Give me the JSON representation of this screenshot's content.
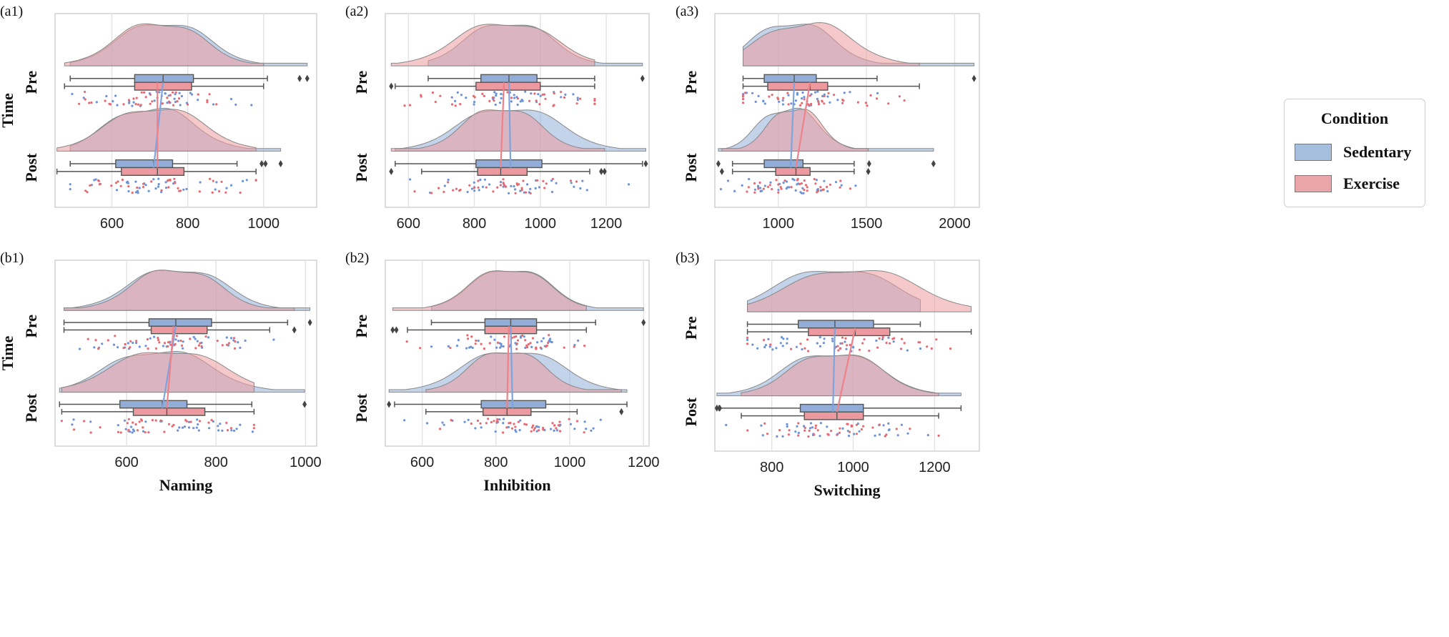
{
  "colors": {
    "sedentary": "#92aed8",
    "exercise": "#ec9a9f",
    "sedentary_line": "#7fa4dd",
    "exercise_line": "#ee8288"
  },
  "legend": {
    "title": "Condition",
    "items": [
      {
        "key": "sedentary",
        "label": "Sedentary"
      },
      {
        "key": "exercise",
        "label": "Exercise"
      }
    ]
  },
  "chart_data": [
    {
      "id": "a1",
      "panel_label": "(a1)",
      "type": "raincloud",
      "title": "",
      "ylabel": "Time",
      "xlabel": "",
      "xlim": [
        450,
        1140
      ],
      "xticks": [
        600,
        800,
        1000
      ],
      "categories": [
        "Pre",
        "Post"
      ],
      "series": [
        {
          "name": "Sedentary",
          "pre": {
            "min": 490,
            "q1": 660,
            "median": 735,
            "q3": 815,
            "max": 1010,
            "outliers": [
              1095,
              1115
            ]
          },
          "post": {
            "min": 490,
            "q1": 610,
            "median": 710,
            "q3": 760,
            "max": 930,
            "outliers": [
              995,
              1005,
              1045
            ]
          }
        },
        {
          "name": "Exercise",
          "pre": {
            "min": 475,
            "q1": 660,
            "median": 720,
            "q3": 810,
            "max": 1000,
            "outliers": []
          },
          "post": {
            "min": 455,
            "q1": 625,
            "median": 720,
            "q3": 790,
            "max": 980,
            "outliers": []
          }
        }
      ]
    },
    {
      "id": "a2",
      "panel_label": "(a2)",
      "type": "raincloud",
      "title": "",
      "ylabel": "",
      "xlabel": "",
      "xlim": [
        530,
        1330
      ],
      "xticks": [
        600,
        800,
        1000,
        1200
      ],
      "categories": [
        "Pre",
        "Post"
      ],
      "series": [
        {
          "name": "Sedentary",
          "pre": {
            "min": 660,
            "q1": 820,
            "median": 905,
            "q3": 990,
            "max": 1165,
            "outliers": [
              1310
            ]
          },
          "post": {
            "min": 560,
            "q1": 805,
            "median": 910,
            "q3": 1005,
            "max": 1310,
            "outliers": [
              1320
            ]
          }
        },
        {
          "name": "Exercise",
          "pre": {
            "min": 560,
            "q1": 805,
            "median": 890,
            "q3": 1000,
            "max": 1165,
            "outliers": [
              548
            ]
          },
          "post": {
            "min": 640,
            "q1": 810,
            "median": 880,
            "q3": 960,
            "max": 1150,
            "outliers": [
              548,
              1185,
              1195
            ]
          }
        }
      ]
    },
    {
      "id": "a3",
      "panel_label": "(a3)",
      "type": "raincloud",
      "title": "",
      "ylabel": "",
      "xlabel": "",
      "xlim": [
        640,
        2140
      ],
      "xticks": [
        1000,
        1500,
        2000
      ],
      "categories": [
        "Pre",
        "Post"
      ],
      "series": [
        {
          "name": "Sedentary",
          "pre": {
            "min": 800,
            "q1": 920,
            "median": 1090,
            "q3": 1215,
            "max": 1560,
            "outliers": [
              2110
            ]
          },
          "post": {
            "min": 740,
            "q1": 920,
            "median": 1070,
            "q3": 1140,
            "max": 1430,
            "outliers": [
              660,
              1515,
              1880
            ]
          }
        },
        {
          "name": "Exercise",
          "pre": {
            "min": 800,
            "q1": 940,
            "median": 1180,
            "q3": 1280,
            "max": 1800,
            "outliers": []
          },
          "post": {
            "min": 740,
            "q1": 985,
            "median": 1100,
            "q3": 1180,
            "max": 1430,
            "outliers": [
              680,
              1510
            ]
          }
        }
      ]
    },
    {
      "id": "b1",
      "panel_label": "(b1)",
      "type": "raincloud",
      "title": "",
      "ylabel": "Time",
      "xlabel": "Naming",
      "xlim": [
        440,
        1025
      ],
      "xticks": [
        600,
        800,
        1000
      ],
      "categories": [
        "Pre",
        "Post"
      ],
      "series": [
        {
          "name": "Sedentary",
          "pre": {
            "min": 460,
            "q1": 650,
            "median": 710,
            "q3": 790,
            "max": 960,
            "outliers": [
              1010
            ]
          },
          "post": {
            "min": 450,
            "q1": 585,
            "median": 680,
            "q3": 735,
            "max": 880,
            "outliers": [
              998
            ]
          }
        },
        {
          "name": "Exercise",
          "pre": {
            "min": 460,
            "q1": 655,
            "median": 705,
            "q3": 780,
            "max": 920,
            "outliers": [
              975
            ]
          },
          "post": {
            "min": 455,
            "q1": 615,
            "median": 690,
            "q3": 775,
            "max": 885,
            "outliers": []
          }
        }
      ]
    },
    {
      "id": "b2",
      "panel_label": "(b2)",
      "type": "raincloud",
      "title": "",
      "ylabel": "",
      "xlabel": "Inhibition",
      "xlim": [
        500,
        1215
      ],
      "xticks": [
        600,
        800,
        1000,
        1200
      ],
      "categories": [
        "Pre",
        "Post"
      ],
      "series": [
        {
          "name": "Sedentary",
          "pre": {
            "min": 625,
            "q1": 770,
            "median": 840,
            "q3": 910,
            "max": 1070,
            "outliers": [
              1200
            ]
          },
          "post": {
            "min": 525,
            "q1": 760,
            "median": 845,
            "q3": 935,
            "max": 1155,
            "outliers": [
              510
            ]
          }
        },
        {
          "name": "Exercise",
          "pre": {
            "min": 560,
            "q1": 770,
            "median": 835,
            "q3": 910,
            "max": 1045,
            "outliers": [
              520,
              530
            ]
          },
          "post": {
            "min": 610,
            "q1": 765,
            "median": 830,
            "q3": 895,
            "max": 1020,
            "outliers": [
              1140
            ]
          }
        }
      ]
    },
    {
      "id": "b3",
      "panel_label": "(b3)",
      "type": "raincloud",
      "title": "",
      "ylabel": "",
      "xlabel": "Switching",
      "xlim": [
        660,
        1310
      ],
      "xticks": [
        800,
        1000,
        1200
      ],
      "categories": [
        "Pre",
        "Post"
      ],
      "series": [
        {
          "name": "Sedentary",
          "pre": {
            "min": 740,
            "q1": 865,
            "median": 955,
            "q3": 1050,
            "max": 1165,
            "outliers": []
          },
          "post": {
            "min": 670,
            "q1": 870,
            "median": 950,
            "q3": 1025,
            "max": 1265,
            "outliers": [
              665,
              672
            ]
          }
        },
        {
          "name": "Exercise",
          "pre": {
            "min": 740,
            "q1": 890,
            "median": 1005,
            "q3": 1090,
            "max": 1290,
            "outliers": []
          },
          "post": {
            "min": 725,
            "q1": 880,
            "median": 960,
            "q3": 1025,
            "max": 1210,
            "outliers": []
          }
        }
      ]
    }
  ]
}
